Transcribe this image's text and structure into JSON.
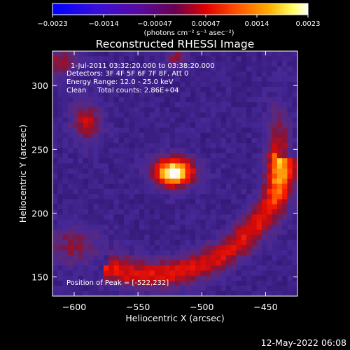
{
  "chart_data": {
    "type": "heatmap",
    "title": "Reconstructed RHESSI Image",
    "xlabel": "Heliocentric X (arcsec)",
    "ylabel": "Heliocentric Y (arcsec)",
    "xlim": [
      -617,
      -425
    ],
    "ylim": [
      135,
      327
    ],
    "x_ticks": [
      -600,
      -550,
      -500,
      -450
    ],
    "y_ticks": [
      150,
      200,
      250,
      300
    ],
    "x_tick_labels": [
      "−600",
      "−550",
      "−500",
      "−450"
    ],
    "y_tick_labels": [
      "150",
      "200",
      "250",
      "300"
    ],
    "colorbar": {
      "min": -0.0023,
      "max": 0.0023,
      "ticks": [
        -0.0023,
        -0.0014,
        -0.00047,
        0.00047,
        0.0014,
        0.0023
      ],
      "tick_labels": [
        "−0.0023",
        "−0.0014",
        "−0.00047",
        "0.00047",
        "0.0014",
        "0.0023"
      ],
      "units": "(photons cm⁻² s⁻¹ asec⁻²)",
      "colormap": "blue-purple-red-yellow-white",
      "colors": [
        "#0000ff",
        "#5500aa",
        "#7a0060",
        "#ff0000",
        "#ff8000",
        "#ffff40",
        "#ffffff"
      ]
    },
    "annotations": [
      "1-Jul-2011 03:32:20.000 to 03:38:20.000",
      "Detectors: 3F 4F 5F 6F 7F 8F, Att 0",
      "Energy Range: 12.0 - 25.0 keV",
      "Clean     Total counts: 2.86E+04"
    ],
    "peak_label": "Position of Peak = [-522,232]",
    "peak": {
      "x": -522,
      "y": 232
    },
    "grid": false
  },
  "footer": {
    "timestamp": "12-May-2022 06:08"
  }
}
